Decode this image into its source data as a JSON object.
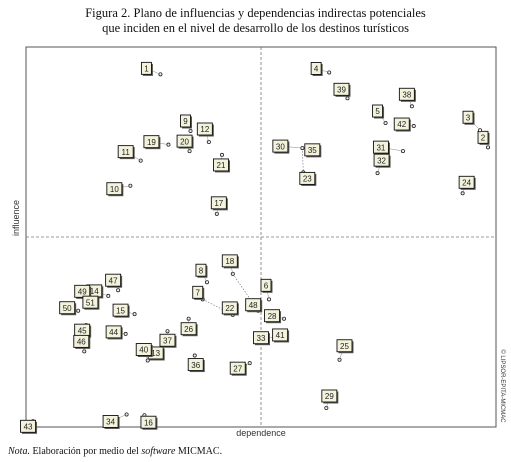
{
  "figure": {
    "title_line1": "Figura 2. Plano de influencias y dependencias indirectas potenciales",
    "title_line2": "que inciden en el nivel de desarrollo de los destinos turísticos",
    "note_label": "Nota.",
    "note_text_before": "Elaboración por medio del",
    "note_software": "software",
    "note_text_after": "MICMAC.",
    "credit": "© LIPSOR-EPITA-MICMAC"
  },
  "chart_data": {
    "type": "scatter",
    "xlabel": "dependence",
    "ylabel": "influence",
    "xlim": [
      0,
      100
    ],
    "ylim": [
      0,
      100
    ],
    "grid": "dashed crosshair at mid-axis",
    "points": [
      {
        "label": "1",
        "x": 28.6,
        "y": 92.8
      },
      {
        "label": "2",
        "x": 98.3,
        "y": 73.6
      },
      {
        "label": "3",
        "x": 96.6,
        "y": 78.1
      },
      {
        "label": "4",
        "x": 64.5,
        "y": 93.3
      },
      {
        "label": "5",
        "x": 76.5,
        "y": 80.0
      },
      {
        "label": "6",
        "x": 51.7,
        "y": 33.6
      },
      {
        "label": "7",
        "x": 37.6,
        "y": 33.6
      },
      {
        "label": "8",
        "x": 38.5,
        "y": 38.1
      },
      {
        "label": "9",
        "x": 35.0,
        "y": 77.9
      },
      {
        "label": "10",
        "x": 22.2,
        "y": 63.5
      },
      {
        "label": "11",
        "x": 24.4,
        "y": 70.1
      },
      {
        "label": "12",
        "x": 38.9,
        "y": 75.0
      },
      {
        "label": "13",
        "x": 26.1,
        "y": 20.8
      },
      {
        "label": "14",
        "x": 17.5,
        "y": 34.5
      },
      {
        "label": "15",
        "x": 23.1,
        "y": 29.7
      },
      {
        "label": "16",
        "x": 25.2,
        "y": 3.1
      },
      {
        "label": "17",
        "x": 40.6,
        "y": 56.1
      },
      {
        "label": "18",
        "x": 44.0,
        "y": 40.3
      },
      {
        "label": "19",
        "x": 30.3,
        "y": 74.3
      },
      {
        "label": "20",
        "x": 34.8,
        "y": 72.6
      },
      {
        "label": "21",
        "x": 41.7,
        "y": 71.6
      },
      {
        "label": "22",
        "x": 44.0,
        "y": 29.5
      },
      {
        "label": "23",
        "x": 59.0,
        "y": 67.0
      },
      {
        "label": "24",
        "x": 92.9,
        "y": 61.5
      },
      {
        "label": "25",
        "x": 66.7,
        "y": 17.7
      },
      {
        "label": "26",
        "x": 34.6,
        "y": 28.5
      },
      {
        "label": "27",
        "x": 47.6,
        "y": 16.8
      },
      {
        "label": "28",
        "x": 54.9,
        "y": 28.5
      },
      {
        "label": "29",
        "x": 63.9,
        "y": 5.0
      },
      {
        "label": "30",
        "x": 58.8,
        "y": 73.4
      },
      {
        "label": "31",
        "x": 80.2,
        "y": 72.6
      },
      {
        "label": "32",
        "x": 74.8,
        "y": 66.8
      },
      {
        "label": "33",
        "x": 53.4,
        "y": 23.5
      },
      {
        "label": "34",
        "x": 21.4,
        "y": 3.3
      },
      {
        "label": "35",
        "x": 60.7,
        "y": 73.2
      },
      {
        "label": "36",
        "x": 35.9,
        "y": 18.8
      },
      {
        "label": "37",
        "x": 30.1,
        "y": 25.2
      },
      {
        "label": "38",
        "x": 82.1,
        "y": 84.4
      },
      {
        "label": "39",
        "x": 68.4,
        "y": 86.5
      },
      {
        "label": "40",
        "x": 25.9,
        "y": 17.5
      },
      {
        "label": "41",
        "x": 53.0,
        "y": 23.7
      },
      {
        "label": "42",
        "x": 82.5,
        "y": 79.2
      },
      {
        "label": "43",
        "x": 1.5,
        "y": 1.5
      },
      {
        "label": "44",
        "x": 21.2,
        "y": 24.5
      },
      {
        "label": "45",
        "x": 12.8,
        "y": 26.8
      },
      {
        "label": "46",
        "x": 12.4,
        "y": 19.9
      },
      {
        "label": "47",
        "x": 19.6,
        "y": 36.0
      },
      {
        "label": "48",
        "x": 49.4,
        "y": 30.6
      },
      {
        "label": "49",
        "x": 12.6,
        "y": 33.6
      },
      {
        "label": "50",
        "x": 11.1,
        "y": 30.6
      },
      {
        "label": "51",
        "x": 13.7,
        "y": 31.8
      }
    ]
  }
}
